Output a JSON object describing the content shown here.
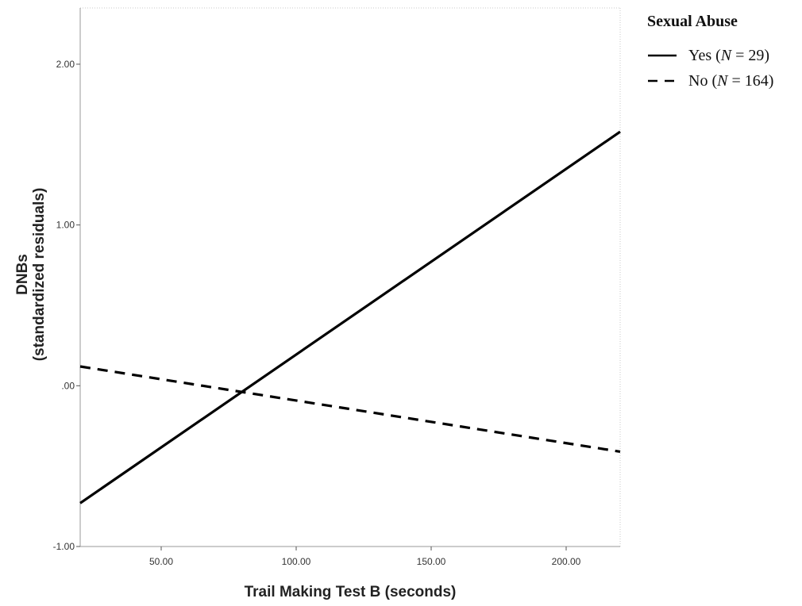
{
  "chart_data": {
    "type": "line",
    "xlabel": "Trail Making Test B (seconds)",
    "ylabel": "DNBs",
    "ylabel_sub": "(standardized residuals)",
    "xlim": [
      20,
      220
    ],
    "ylim": [
      -1.0,
      2.35
    ],
    "xticks": [
      50,
      100,
      150,
      200
    ],
    "xtick_labels": [
      "50.00",
      "100.00",
      "150.00",
      "200.00"
    ],
    "yticks": [
      -1,
      0,
      1,
      2
    ],
    "ytick_labels": [
      "-1.00",
      ".00",
      "1.00",
      "2.00"
    ],
    "legend": {
      "title": "Sexual Abuse",
      "position": "top-right-outside"
    },
    "series": [
      {
        "name_prefix": "Yes (",
        "name_italic": "N",
        "name_suffix": " = 29)",
        "style": "solid",
        "color": "#000000",
        "x": [
          20,
          220
        ],
        "y": [
          -0.73,
          1.58
        ]
      },
      {
        "name_prefix": "No (",
        "name_italic": "N",
        "name_suffix": " = 164)",
        "style": "dashed",
        "color": "#000000",
        "x": [
          20,
          220
        ],
        "y": [
          0.12,
          -0.41
        ]
      }
    ],
    "grid": false
  }
}
